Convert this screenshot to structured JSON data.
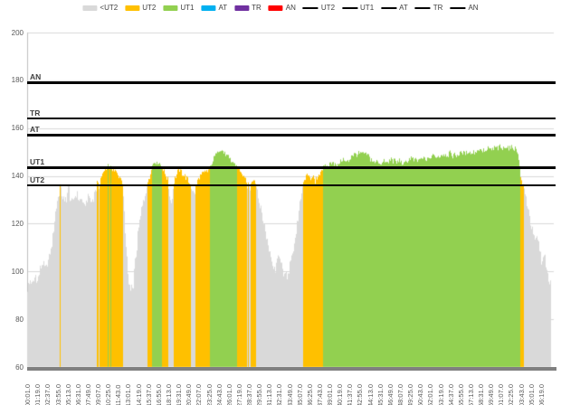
{
  "chart_data": {
    "type": "area",
    "title": "",
    "xlabel": "",
    "ylabel": "",
    "legend_position": "top",
    "grid": "horizontal",
    "y_axis": {
      "min": 60,
      "max": 200,
      "ticks": [
        200,
        180,
        160,
        140,
        120,
        100,
        80,
        60
      ]
    },
    "x_axis": {
      "total_minutes": 67.5,
      "tick_interval_seconds": 78,
      "tick_labels": [
        "00:01.0",
        "01:19.0",
        "02:37.0",
        "03:55.0",
        "05:13.0",
        "06:31.0",
        "07:49.0",
        "09:07.0",
        "10:25.0",
        "11:43.0",
        "13:01.0",
        "14:19.0",
        "15:37.0",
        "16:55.0",
        "18:13.0",
        "19:31.0",
        "20:49.0",
        "22:07.0",
        "23:25.0",
        "24:43.0",
        "26:01.0",
        "27:19.0",
        "28:37.0",
        "29:55.0",
        "31:13.0",
        "32:31.0",
        "33:49.0",
        "35:07.0",
        "36:25.0",
        "37:43.0",
        "39:01.0",
        "40:19.0",
        "41:37.0",
        "42:55.0",
        "44:13.0",
        "45:31.0",
        "46:49.0",
        "48:07.0",
        "49:25.0",
        "50:43.0",
        "52:01.0",
        "53:19.0",
        "54:37.0",
        "55:55.0",
        "57:13.0",
        "58:31.0",
        "59:49.0",
        "01:07.0",
        "02:25.0",
        "03:43.0",
        "05:01.0",
        "06:19.0"
      ]
    },
    "legend": {
      "area_items": [
        {
          "label": "<UT2",
          "color": "#D9D9D9"
        },
        {
          "label": "UT2",
          "color": "#FFC000"
        },
        {
          "label": "UT1",
          "color": "#92D050"
        },
        {
          "label": "AT",
          "color": "#00B0F0"
        },
        {
          "label": "TR",
          "color": "#7030A0"
        },
        {
          "label": "AN",
          "color": "#FF0000"
        }
      ],
      "line_items": [
        {
          "label": "UT2"
        },
        {
          "label": "UT1"
        },
        {
          "label": "AT"
        },
        {
          "label": "TR"
        },
        {
          "label": "AN"
        }
      ],
      "line_color": "#000000"
    },
    "threshold_lines": [
      {
        "label": "AN",
        "value": 179
      },
      {
        "label": "TR",
        "value": 164
      },
      {
        "label": "AT",
        "value": 157
      },
      {
        "label": "UT1",
        "value": 143.5
      },
      {
        "label": "UT2",
        "value": 136
      }
    ],
    "zones": [
      {
        "label": "<UT2",
        "upper": 136,
        "color": "#D9D9D9"
      },
      {
        "label": "UT2",
        "upper": 143.5,
        "color": "#FFC000"
      },
      {
        "label": "UT1",
        "upper": 157,
        "color": "#92D050"
      },
      {
        "label": "AT",
        "upper": 164,
        "color": "#00B0F0"
      },
      {
        "label": "TR",
        "upper": 179,
        "color": "#7030A0"
      },
      {
        "label": "AN",
        "upper": 999,
        "color": "#FF0000"
      }
    ],
    "series": [
      {
        "name": "value",
        "samples_min_val": [
          [
            0,
            92
          ],
          [
            0.3,
            96
          ],
          [
            0.6,
            94
          ],
          [
            1,
            98
          ],
          [
            1.3,
            96
          ],
          [
            1.7,
            101
          ],
          [
            2,
            104
          ],
          [
            2.3,
            100
          ],
          [
            2.6,
            103
          ],
          [
            3,
            108
          ],
          [
            3.3,
            116
          ],
          [
            3.6,
            124
          ],
          [
            3.9,
            131
          ],
          [
            4.2,
            135
          ],
          [
            4.5,
            132
          ],
          [
            4.8,
            129
          ],
          [
            5.1,
            131
          ],
          [
            5.3,
            137
          ],
          [
            5.5,
            130
          ],
          [
            5.8,
            128
          ],
          [
            6.1,
            131
          ],
          [
            6.4,
            133
          ],
          [
            6.7,
            129
          ],
          [
            7,
            131
          ],
          [
            7.3,
            127
          ],
          [
            7.6,
            130
          ],
          [
            7.9,
            132
          ],
          [
            8.2,
            129
          ],
          [
            8.5,
            131
          ],
          [
            8.8,
            134
          ],
          [
            9,
            137
          ],
          [
            9.15,
            134
          ],
          [
            9.3,
            137
          ],
          [
            9.5,
            139
          ],
          [
            9.8,
            141
          ],
          [
            10.1,
            143
          ],
          [
            10.4,
            144.5
          ],
          [
            10.7,
            143.5
          ],
          [
            11,
            142
          ],
          [
            11.3,
            142.5
          ],
          [
            11.6,
            141
          ],
          [
            11.9,
            139.5
          ],
          [
            12.2,
            138
          ],
          [
            12.4,
            130
          ],
          [
            12.7,
            112
          ],
          [
            13,
            97
          ],
          [
            13.3,
            91
          ],
          [
            13.6,
            93
          ],
          [
            13.9,
            104
          ],
          [
            14.2,
            113
          ],
          [
            14.5,
            121
          ],
          [
            14.8,
            127
          ],
          [
            15.1,
            132
          ],
          [
            15.4,
            135
          ],
          [
            15.6,
            138
          ],
          [
            15.9,
            141.5
          ],
          [
            16.1,
            144
          ],
          [
            16.4,
            146
          ],
          [
            16.7,
            145.5
          ],
          [
            17,
            145
          ],
          [
            17.3,
            144
          ],
          [
            17.5,
            142.5
          ],
          [
            17.8,
            141
          ],
          [
            18.1,
            138.5
          ],
          [
            18.3,
            133
          ],
          [
            18.5,
            129
          ],
          [
            18.7,
            131
          ],
          [
            18.9,
            137.5
          ],
          [
            19.1,
            139.5
          ],
          [
            19.4,
            141.5
          ],
          [
            19.6,
            143
          ],
          [
            19.9,
            141.5
          ],
          [
            20.2,
            140.5
          ],
          [
            20.5,
            139
          ],
          [
            20.8,
            138
          ],
          [
            21,
            136.5
          ],
          [
            21.2,
            134
          ],
          [
            21.5,
            132.5
          ],
          [
            21.8,
            135
          ],
          [
            22,
            138.5
          ],
          [
            22.3,
            140
          ],
          [
            22.6,
            141
          ],
          [
            22.9,
            141.5
          ],
          [
            23.2,
            142
          ],
          [
            23.4,
            142.5
          ],
          [
            23.6,
            143.5
          ],
          [
            23.9,
            146
          ],
          [
            24.2,
            148.5
          ],
          [
            24.5,
            150.5
          ],
          [
            24.8,
            151.5
          ],
          [
            25.1,
            150.5
          ],
          [
            25.4,
            149.5
          ],
          [
            25.7,
            148.5
          ],
          [
            26,
            147
          ],
          [
            26.3,
            146
          ],
          [
            26.6,
            145
          ],
          [
            26.9,
            144
          ],
          [
            27.1,
            143.5
          ],
          [
            27.4,
            142
          ],
          [
            27.7,
            140.5
          ],
          [
            28,
            139
          ],
          [
            28.2,
            137.5
          ],
          [
            28.4,
            135.5
          ],
          [
            28.7,
            135
          ],
          [
            29,
            138
          ],
          [
            29.3,
            138.5
          ],
          [
            29.6,
            135
          ],
          [
            30,
            128
          ],
          [
            30.5,
            120
          ],
          [
            31,
            112
          ],
          [
            31.5,
            105
          ],
          [
            32,
            101
          ],
          [
            32.4,
            108
          ],
          [
            32.7,
            103
          ],
          [
            33.2,
            98
          ],
          [
            33.5,
            97
          ],
          [
            33.9,
            103
          ],
          [
            34.5,
            112
          ],
          [
            34.9,
            122
          ],
          [
            35.3,
            130
          ],
          [
            35.6,
            137
          ],
          [
            35.9,
            139
          ],
          [
            36.3,
            140.5
          ],
          [
            36.7,
            138.5
          ],
          [
            37,
            140
          ],
          [
            37.1,
            136
          ],
          [
            37.3,
            139
          ],
          [
            37.7,
            141
          ],
          [
            38,
            142.5
          ],
          [
            38.3,
            143.5
          ],
          [
            38.6,
            144
          ],
          [
            39,
            144.5
          ],
          [
            39.4,
            146.5
          ],
          [
            39.8,
            144.5
          ],
          [
            40.2,
            145
          ],
          [
            40.6,
            147
          ],
          [
            41,
            146
          ],
          [
            41.4,
            145.5
          ],
          [
            41.8,
            148.5
          ],
          [
            42.2,
            149.5
          ],
          [
            42.8,
            149
          ],
          [
            43.4,
            149.5
          ],
          [
            44,
            148.5
          ],
          [
            44.4,
            146.5
          ],
          [
            44.8,
            145.5
          ],
          [
            45.2,
            146.5
          ],
          [
            45.6,
            145
          ],
          [
            46,
            146
          ],
          [
            46.5,
            145.5
          ],
          [
            47,
            147
          ],
          [
            47.5,
            145.5
          ],
          [
            48,
            146.5
          ],
          [
            48.5,
            145
          ],
          [
            49,
            146.5
          ],
          [
            49.5,
            147.5
          ],
          [
            50,
            146
          ],
          [
            50.5,
            146.5
          ],
          [
            51,
            147.5
          ],
          [
            51.5,
            146.5
          ],
          [
            52,
            148
          ],
          [
            52.5,
            148.5
          ],
          [
            53,
            148
          ],
          [
            53.5,
            149
          ],
          [
            54,
            148.5
          ],
          [
            54.5,
            149.5
          ],
          [
            55,
            148.5
          ],
          [
            55.5,
            149
          ],
          [
            56,
            150
          ],
          [
            56.5,
            149.5
          ],
          [
            57,
            150.5
          ],
          [
            57.5,
            149.5
          ],
          [
            58,
            150.5
          ],
          [
            58.5,
            151
          ],
          [
            59,
            150
          ],
          [
            59.5,
            151.5
          ],
          [
            60,
            150.5
          ],
          [
            60.3,
            152.5
          ],
          [
            60.6,
            151.5
          ],
          [
            61,
            152
          ],
          [
            61.4,
            151
          ],
          [
            61.8,
            152.5
          ],
          [
            62.2,
            151.5
          ],
          [
            62.6,
            152
          ],
          [
            63,
            151
          ],
          [
            63.3,
            149.5
          ],
          [
            63.45,
            147
          ],
          [
            63.6,
            140.5
          ],
          [
            63.9,
            137
          ],
          [
            64,
            135.5
          ],
          [
            64.3,
            131
          ],
          [
            64.6,
            126
          ],
          [
            64.9,
            121
          ],
          [
            65.2,
            117
          ],
          [
            65.5,
            112
          ],
          [
            65.8,
            115
          ],
          [
            66.1,
            109
          ],
          [
            66.4,
            104
          ],
          [
            66.7,
            107
          ],
          [
            67,
            101
          ],
          [
            67.3,
            96
          ],
          [
            67.5,
            94
          ]
        ]
      }
    ],
    "noise_amplitude": {
      "below_ut2": 2.4,
      "above_ut2": 1.3
    }
  },
  "style": {
    "grid_color": "#D9D9D9",
    "axis_line_color": "#BFBFBF",
    "axis_bar_color": "#808080",
    "tick_text_color": "#595959",
    "threshold_line_color": "#000000",
    "threshold_label_color": "#404040",
    "background": "#FFFFFF"
  }
}
